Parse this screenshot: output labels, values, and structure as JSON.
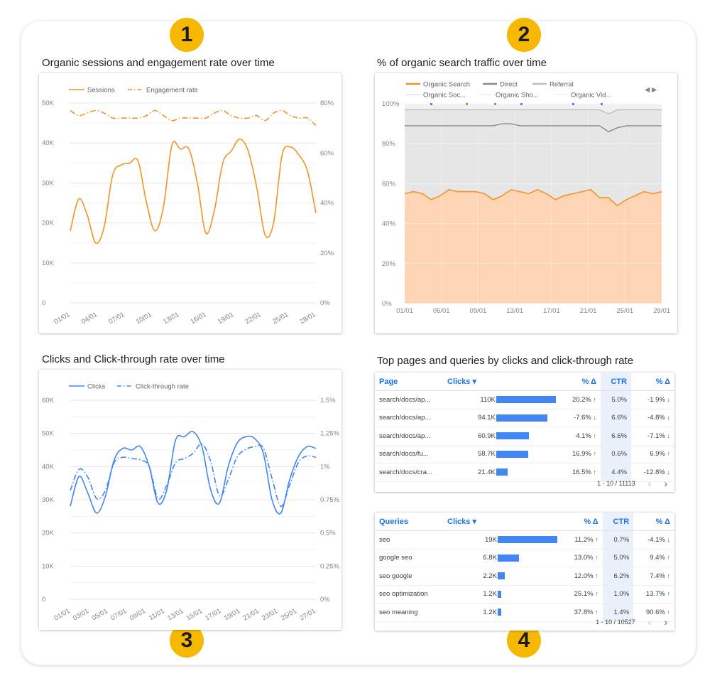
{
  "badges": [
    "1",
    "2",
    "3",
    "4"
  ],
  "titles": {
    "s1": "Organic sessions and engagement rate over time",
    "s2": "% of organic search traffic over time",
    "s3": "Clicks and Click-through rate over time",
    "s4": "Top pages and queries by clicks and click-through rate"
  },
  "colors": {
    "orange": "#f29423",
    "blue": "#4285f4",
    "badge": "#f6b800",
    "link": "#1a73e8"
  },
  "chart_data": [
    {
      "type": "line",
      "legend": [
        "Sessions",
        "Engagement rate"
      ],
      "x_ticks": [
        "01/01",
        "04/01",
        "07/01",
        "10/01",
        "13/01",
        "16/01",
        "19/01",
        "22/01",
        "25/01",
        "28/01"
      ],
      "y_left_ticks": [
        "0",
        "10K",
        "20K",
        "30K",
        "40K",
        "50K"
      ],
      "y_right_ticks": [
        "0%",
        "20%",
        "40%",
        "60%",
        "80%"
      ],
      "ylim": [
        0,
        50000
      ],
      "y2lim": [
        0,
        80
      ],
      "series": [
        {
          "name": "Sessions",
          "axis": "left",
          "style": "solid",
          "values": [
            18000,
            26000,
            22000,
            15000,
            19000,
            32000,
            34500,
            35000,
            35500,
            25000,
            18000,
            24000,
            39500,
            38500,
            38500,
            30000,
            17500,
            23000,
            35000,
            38000,
            41000,
            38000,
            29000,
            17000,
            20000,
            37000,
            39000,
            37000,
            33000,
            22500
          ]
        },
        {
          "name": "Engagement rate",
          "axis": "left_scaled",
          "style": "dash-dot",
          "values": [
            77,
            75,
            76,
            77,
            76,
            74,
            74,
            74,
            74,
            75,
            77,
            75,
            73,
            74,
            74,
            74,
            74,
            76,
            77,
            75,
            74,
            74,
            75,
            73,
            76,
            77,
            75,
            74,
            74,
            71
          ]
        }
      ]
    },
    {
      "type": "area",
      "legend": [
        "Organic Search",
        "Direct",
        "Referral",
        "Organic Soc...",
        "Organic Sho...",
        "Organic Vid..."
      ],
      "x_ticks": [
        "01/01",
        "05/01",
        "09/01",
        "13/01",
        "17/01",
        "21/01",
        "25/01",
        "29/01"
      ],
      "y_ticks": [
        "0%",
        "20%",
        "40%",
        "60%",
        "80%",
        "100%"
      ],
      "ylim": [
        0,
        100
      ],
      "series": [
        {
          "name": "Organic Search",
          "values": [
            55,
            56,
            55,
            52,
            54,
            57,
            56,
            56,
            56,
            55,
            52,
            54,
            57,
            56,
            55,
            57,
            55,
            52,
            54,
            55,
            56,
            57,
            53,
            53,
            49,
            52,
            54,
            56,
            55,
            56
          ]
        },
        {
          "name": "Direct",
          "values": [
            89,
            89,
            89,
            89,
            89,
            89,
            89,
            89,
            89,
            89,
            89,
            90,
            90,
            89,
            89,
            89,
            89,
            89,
            89,
            89,
            89,
            89,
            89,
            86,
            88,
            89,
            89,
            89,
            89,
            89
          ]
        },
        {
          "name": "Referral",
          "values": [
            97,
            97,
            97,
            97,
            97,
            97,
            97,
            97,
            97,
            97,
            97,
            97,
            97,
            97,
            97,
            97,
            97,
            97,
            97,
            97,
            97,
            97,
            97,
            95,
            97,
            97,
            97,
            97,
            97,
            97
          ]
        }
      ]
    },
    {
      "type": "line",
      "legend": [
        "Clicks",
        "Click-through rate"
      ],
      "x_ticks": [
        "01/01",
        "03/01",
        "05/01",
        "07/01",
        "09/01",
        "11/01",
        "13/01",
        "15/01",
        "17/01",
        "19/01",
        "21/01",
        "23/01",
        "25/01",
        "27/01"
      ],
      "y_left_ticks": [
        "0",
        "10K",
        "20K",
        "30K",
        "40K",
        "50K",
        "60K"
      ],
      "y_right_ticks": [
        "0%",
        "0.25%",
        "0.5%",
        "0.75%",
        "1%",
        "1.25%",
        "1.5%"
      ],
      "ylim": [
        0,
        60000
      ],
      "y2lim": [
        0,
        1.5
      ],
      "series": [
        {
          "name": "Clicks",
          "axis": "left",
          "style": "solid",
          "values": [
            28000,
            37000,
            32000,
            26000,
            31000,
            42000,
            45500,
            45000,
            46000,
            40000,
            29000,
            33000,
            48000,
            49000,
            50500,
            46000,
            33000,
            29000,
            40000,
            47000,
            49000,
            48500,
            44000,
            30000,
            26000,
            36000,
            43000,
            46000,
            45500
          ]
        },
        {
          "name": "Click-through rate",
          "axis": "right",
          "style": "dash-dot",
          "values": [
            0.82,
            0.98,
            0.92,
            0.76,
            0.82,
            1.03,
            1.07,
            1.06,
            1.05,
            1.0,
            0.76,
            0.86,
            1.03,
            1.06,
            1.1,
            1.17,
            1.04,
            0.78,
            0.9,
            1.07,
            1.13,
            1.15,
            1.14,
            0.91,
            0.7,
            0.86,
            1.03,
            1.08,
            1.07
          ]
        }
      ]
    }
  ],
  "pages_table": {
    "headers": {
      "name": "Page",
      "clicks": "Clicks ▾",
      "d1": "% Δ",
      "ctr": "CTR",
      "d2": "% Δ"
    },
    "rows": [
      {
        "name": "search/docs/ap...",
        "clicks": "110K",
        "bar": 1.0,
        "d1": "20.2%",
        "d1_dir": "up",
        "ctr": "5.0%",
        "d2": "-1.9%",
        "d2_dir": "down"
      },
      {
        "name": "search/docs/ap...",
        "clicks": "94.1K",
        "bar": 0.855,
        "d1": "-7.6%",
        "d1_dir": "down",
        "ctr": "6.6%",
        "d2": "-4.8%",
        "d2_dir": "down"
      },
      {
        "name": "search/docs/ap...",
        "clicks": "60.9K",
        "bar": 0.554,
        "d1": "4.1%",
        "d1_dir": "up",
        "ctr": "6.6%",
        "d2": "-7.1%",
        "d2_dir": "down"
      },
      {
        "name": "search/docs/fu...",
        "clicks": "58.7K",
        "bar": 0.534,
        "d1": "16.9%",
        "d1_dir": "up",
        "ctr": "0.6%",
        "d2": "6.9%",
        "d2_dir": "up"
      },
      {
        "name": "search/docs/cra...",
        "clicks": "21.4K",
        "bar": 0.195,
        "d1": "16.5%",
        "d1_dir": "up",
        "ctr": "4.4%",
        "d2": "-12.8%",
        "d2_dir": "down"
      }
    ],
    "pager": "1 - 10 / 11113"
  },
  "queries_table": {
    "headers": {
      "name": "Queries",
      "clicks": "Clicks ▾",
      "d1": "% Δ",
      "ctr": "CTR",
      "d2": "% Δ"
    },
    "rows": [
      {
        "name": "seo",
        "clicks": "19K",
        "bar": 1.0,
        "d1": "11.2%",
        "d1_dir": "up",
        "ctr": "0.7%",
        "d2": "-4.1%",
        "d2_dir": "down"
      },
      {
        "name": "google seo",
        "clicks": "6.8K",
        "bar": 0.358,
        "d1": "13.0%",
        "d1_dir": "up",
        "ctr": "5.0%",
        "d2": "9.4%",
        "d2_dir": "up"
      },
      {
        "name": "seo google",
        "clicks": "2.2K",
        "bar": 0.116,
        "d1": "12.0%",
        "d1_dir": "up",
        "ctr": "6.2%",
        "d2": "7.4%",
        "d2_dir": "up"
      },
      {
        "name": "seo optimization",
        "clicks": "1.2K",
        "bar": 0.063,
        "d1": "25.1%",
        "d1_dir": "up",
        "ctr": "1.0%",
        "d2": "13.7%",
        "d2_dir": "up"
      },
      {
        "name": "seo meaning",
        "clicks": "1.2K",
        "bar": 0.063,
        "d1": "37.8%",
        "d1_dir": "up",
        "ctr": "1.4%",
        "d2": "90.6%",
        "d2_dir": "up"
      }
    ],
    "pager": "1 - 10 / 10527"
  },
  "pager_prev": "‹",
  "pager_next": "›",
  "legend_arrows": "◀ ▶",
  "arrow_up": "↑",
  "arrow_down": "↓"
}
